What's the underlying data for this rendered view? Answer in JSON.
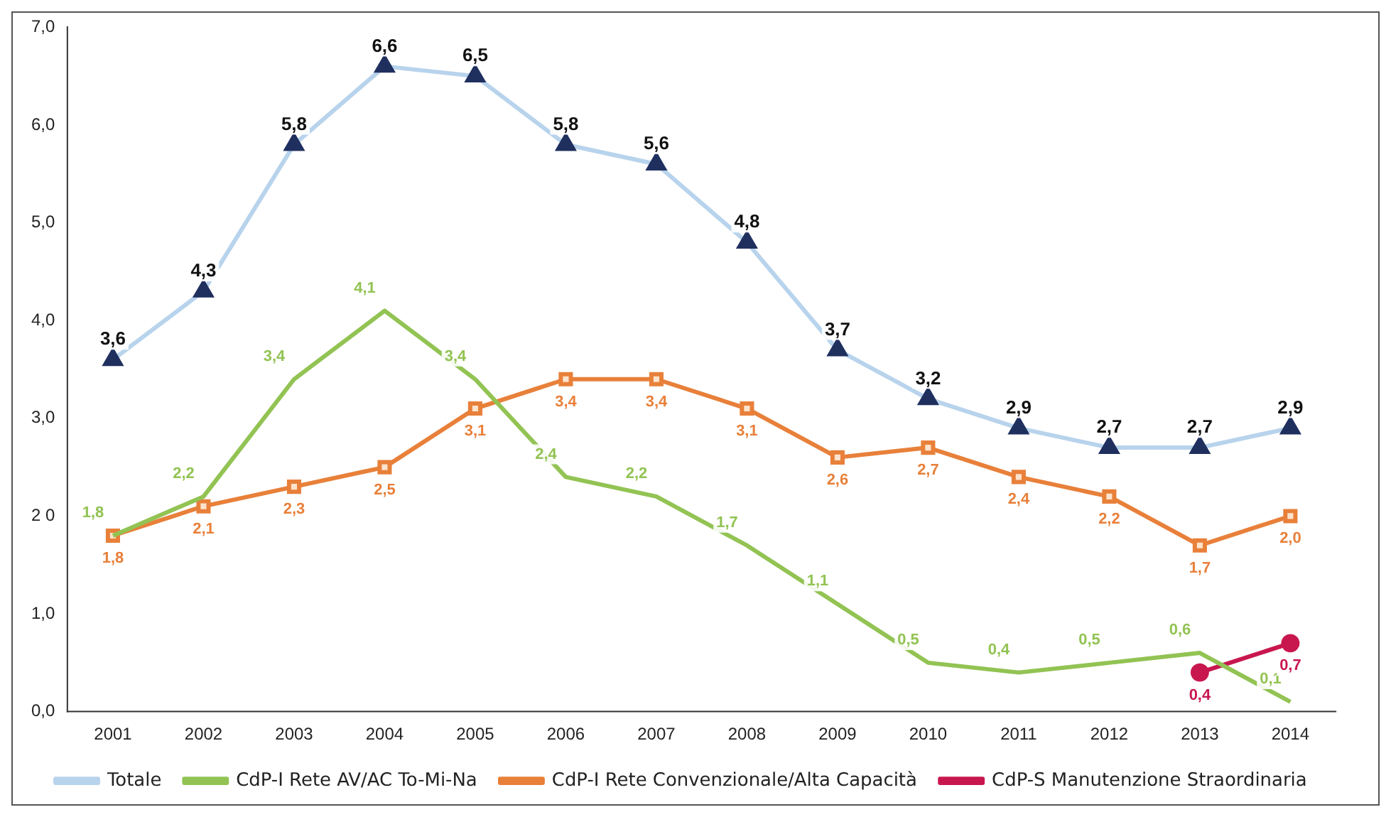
{
  "chart_data": {
    "type": "line",
    "categories": [
      "2001",
      "2002",
      "2003",
      "2004",
      "2005",
      "2006",
      "2007",
      "2008",
      "2009",
      "2010",
      "2011",
      "2012",
      "2013",
      "2014"
    ],
    "series": [
      {
        "name": "Totale",
        "color": "#b8d3ec",
        "marker": "triangle",
        "values": [
          3.6,
          4.3,
          5.8,
          6.6,
          6.5,
          5.8,
          5.6,
          4.8,
          3.7,
          3.2,
          2.9,
          2.7,
          2.7,
          2.9
        ],
        "value_labels": [
          "3,6",
          "4,3",
          "5,8",
          "6,6",
          "6,5",
          "5,8",
          "5,6",
          "4,8",
          "3,7",
          "3,2",
          "2,9",
          "2,7",
          "2,7",
          "2,9"
        ]
      },
      {
        "name": "CdP-I Rete AV/AC To-Mi-Na",
        "color": "#92c353",
        "marker": "none",
        "values": [
          1.8,
          2.2,
          3.4,
          4.1,
          3.4,
          2.4,
          2.2,
          1.7,
          1.1,
          0.5,
          0.4,
          0.5,
          0.6,
          0.1
        ],
        "value_labels": [
          "1,8",
          "2,2",
          "3,4",
          "4,1",
          "3,4",
          "2,4",
          "2,2",
          "1,7",
          "1,1",
          "0,5",
          "0,4",
          "0,5",
          "0,6",
          "0,1"
        ]
      },
      {
        "name": "CdP-I Rete Convenzionale/Alta Capacità",
        "color": "#e8803a",
        "marker": "square",
        "values": [
          1.8,
          2.1,
          2.3,
          2.5,
          3.1,
          3.4,
          3.4,
          3.1,
          2.6,
          2.7,
          2.4,
          2.2,
          1.7,
          2.0
        ],
        "value_labels": [
          "1,8",
          "2,1",
          "2,3",
          "2,5",
          "3,1",
          "3,4",
          "3,4",
          "3,1",
          "2,6",
          "2,7",
          "2,4",
          "2,2",
          "1,7",
          "2,0"
        ]
      },
      {
        "name": "CdP-S Manutenzione Straordinaria",
        "color": "#c8174f",
        "marker": "circle",
        "values": [
          null,
          null,
          null,
          null,
          null,
          null,
          null,
          null,
          null,
          null,
          null,
          null,
          0.4,
          0.7
        ],
        "value_labels": [
          null,
          null,
          null,
          null,
          null,
          null,
          null,
          null,
          null,
          null,
          null,
          null,
          "0,4",
          "0,7"
        ]
      }
    ],
    "ylim": [
      0,
      7
    ],
    "yticks": [
      {
        "value": 0,
        "label": "0,0"
      },
      {
        "value": 1,
        "label": "1,0"
      },
      {
        "value": 2,
        "label": "2 0"
      },
      {
        "value": 3,
        "label": "3,0"
      },
      {
        "value": 4,
        "label": "4,0"
      },
      {
        "value": 5,
        "label": "5,0"
      },
      {
        "value": 6,
        "label": "6,0"
      },
      {
        "value": 7,
        "label": "7,0"
      }
    ],
    "grid": false,
    "legend": "bottom",
    "line_style": "solid"
  }
}
